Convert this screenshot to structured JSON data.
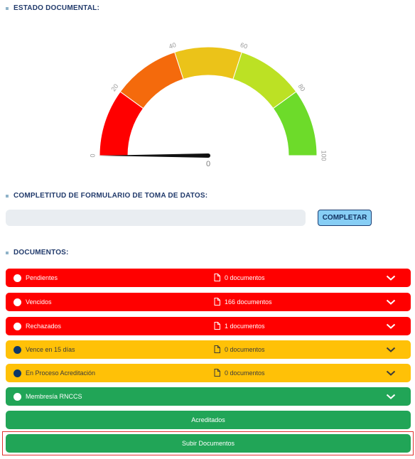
{
  "estado": {
    "title": "ESTADO DOCUMENTAL:",
    "gauge": {
      "value": 0,
      "value_label": "0",
      "min": 0,
      "max": 100,
      "ticks": [
        "0",
        "20",
        "40",
        "60",
        "80",
        "100"
      ],
      "bands": [
        {
          "from": 0,
          "to": 20,
          "color": "#ff0000"
        },
        {
          "from": 20,
          "to": 40,
          "color": "#f46a0c"
        },
        {
          "from": 40,
          "to": 60,
          "color": "#ebc319"
        },
        {
          "from": 60,
          "to": 80,
          "color": "#bce124"
        },
        {
          "from": 80,
          "to": 100,
          "color": "#6ddb2a"
        }
      ]
    }
  },
  "completitud": {
    "title": "COMPLETITUD DE FORMULARIO DE TOMA DE DATOS:",
    "progress": 0,
    "button_label": "COMPLETAR"
  },
  "documentos": {
    "title": "DOCUMENTOS:",
    "rows": [
      {
        "label": "Pendientes",
        "count": "0 documentos",
        "status": "red"
      },
      {
        "label": "Vencidos",
        "count": "166 documentos",
        "status": "red"
      },
      {
        "label": "Rechazados",
        "count": "1 documentos",
        "status": "red"
      },
      {
        "label": "Vence en 15 días",
        "count": "0 documentos",
        "status": "yellow"
      },
      {
        "label": "En Proceso Acreditación",
        "count": "0 documentos",
        "status": "yellow"
      },
      {
        "label": "Membresía RNCCS",
        "count": "",
        "status": "green"
      }
    ],
    "acreditados_label": "Acreditados",
    "subir_label": "Subir Documentos"
  }
}
